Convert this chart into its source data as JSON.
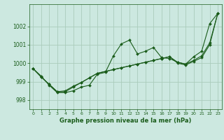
{
  "title": "Graphe pression niveau de la mer (hPa)",
  "background_color": "#cce8e0",
  "grid_color": "#aaccbb",
  "line_color": "#1a5c1a",
  "marker_color": "#1a5c1a",
  "xlim": [
    -0.5,
    23.5
  ],
  "ylim": [
    997.5,
    1003.2
  ],
  "yticks": [
    998,
    999,
    1000,
    1001,
    1002
  ],
  "xticks": [
    0,
    1,
    2,
    3,
    4,
    5,
    6,
    7,
    8,
    9,
    10,
    11,
    12,
    13,
    14,
    15,
    16,
    17,
    18,
    19,
    20,
    21,
    22,
    23
  ],
  "series1": [
    999.7,
    999.3,
    998.8,
    998.4,
    998.4,
    998.5,
    998.7,
    998.8,
    999.4,
    999.5,
    1000.4,
    1001.05,
    1001.25,
    1000.5,
    1000.65,
    1000.85,
    1000.3,
    1000.25,
    1000.05,
    999.95,
    1000.35,
    1000.65,
    1002.15,
    1002.7
  ],
  "series2": [
    999.7,
    999.25,
    998.85,
    998.45,
    998.45,
    998.7,
    998.95,
    999.2,
    999.45,
    999.55,
    999.65,
    999.75,
    999.85,
    999.95,
    1000.05,
    1000.15,
    1000.25,
    1000.35,
    1000.0,
    999.9,
    1000.1,
    1000.3,
    1001.0,
    1002.7
  ],
  "series3": [
    999.7,
    999.25,
    998.85,
    998.45,
    998.5,
    998.75,
    998.95,
    999.2,
    999.45,
    999.55,
    999.65,
    999.75,
    999.85,
    999.95,
    1000.05,
    1000.15,
    1000.25,
    1000.35,
    1000.05,
    999.95,
    1000.15,
    1000.4,
    1001.1,
    1002.7
  ]
}
